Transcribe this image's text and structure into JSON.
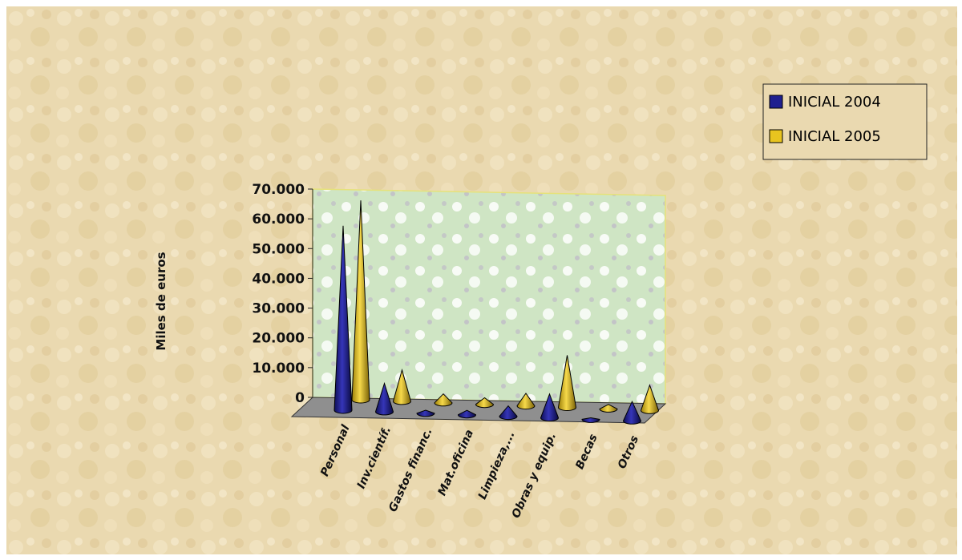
{
  "chart_data": {
    "type": "bar",
    "style": "3d-cone",
    "title": "",
    "xlabel": "",
    "ylabel": "Miles de euros",
    "ylim": [
      0,
      70000
    ],
    "yticks": [
      0,
      10000,
      20000,
      30000,
      40000,
      50000,
      60000,
      70000
    ],
    "ytick_labels": [
      "0",
      "10.000",
      "20.000",
      "30.000",
      "40.000",
      "50.000",
      "60.000",
      "70.000"
    ],
    "categories": [
      "Personal",
      "Inv.científ.",
      "Gastos financ.",
      "Mat.oficina",
      "Limpieza,...",
      "Obras y equip.",
      "Becas",
      "Otros"
    ],
    "series": [
      {
        "name": "INICIAL 2004",
        "color": "#1f1f8f",
        "values": [
          62000,
          9500,
          1000,
          1500,
          3500,
          8000,
          500,
          6500
        ]
      },
      {
        "name": "INICIAL 2005",
        "color": "#e8c41f",
        "values": [
          67000,
          10500,
          3000,
          2200,
          4200,
          17500,
          1500,
          8500
        ]
      }
    ],
    "legend_position": "top-right",
    "grid": false
  },
  "colors": {
    "background": "#ead9b0",
    "back_wall": "#cfe5c4",
    "floor": "#8f8f8f",
    "series_2004": "#1f1f8f",
    "series_2005": "#e8c41f"
  }
}
